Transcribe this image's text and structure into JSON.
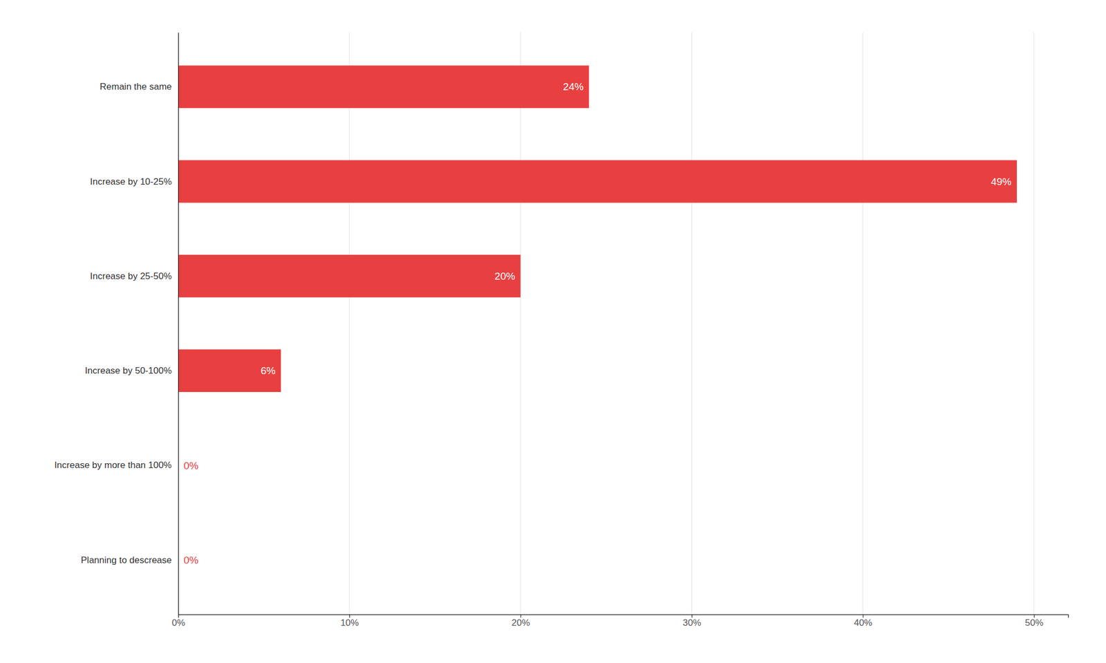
{
  "chart_data": {
    "type": "bar",
    "orientation": "horizontal",
    "categories": [
      "Planning to descrease",
      "Increase by more than 100%",
      "Increase by 50-100%",
      "Increase by 25-50%",
      "Increase by 10-25%",
      "Remain the same"
    ],
    "values": [
      0,
      0,
      6,
      20,
      49,
      24
    ],
    "value_labels": [
      "0%",
      "0%",
      "6%",
      "20%",
      "49%",
      "24%"
    ],
    "data_labels": true,
    "color": "#e84040",
    "xlim": [
      0,
      52
    ],
    "xticks": [
      {
        "value": 0,
        "label": "0%"
      },
      {
        "value": 10,
        "label": "10%"
      },
      {
        "value": 20,
        "label": "20%"
      },
      {
        "value": 30,
        "label": "30%"
      },
      {
        "value": 40,
        "label": "40%"
      },
      {
        "value": 50,
        "label": "50%"
      }
    ],
    "grid": true
  }
}
